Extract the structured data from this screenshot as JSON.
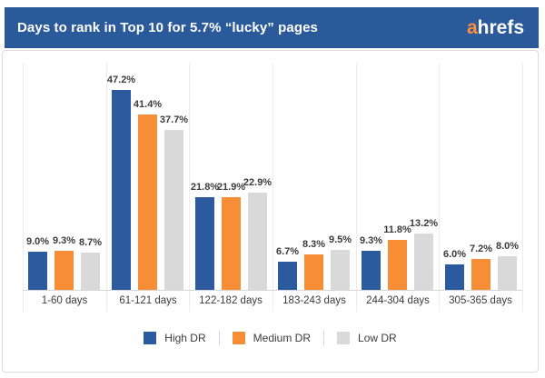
{
  "header": {
    "title": "Days to rank in Top 10 for 5.7% “lucky” pages",
    "logo_prefix": "a",
    "logo_suffix": "hrefs"
  },
  "colors": {
    "header_bg": "#2b5a9b",
    "logo_accent": "#fd8f3d",
    "high_dr": "#2b5a9e",
    "medium_dr": "#f78e36",
    "low_dr": "#d9d9d9",
    "label_text": "#3b3b3b"
  },
  "chart_data": {
    "type": "bar",
    "title": "Days to rank in Top 10 for 5.7% “lucky” pages",
    "categories": [
      "1-60 days",
      "61-121 days",
      "122-182 days",
      "183-243 days",
      "244-304 days",
      "305-365 days"
    ],
    "series": [
      {
        "name": "High DR",
        "color_key": "high_dr",
        "values": [
          9.0,
          47.2,
          21.8,
          6.7,
          9.3,
          6.0
        ]
      },
      {
        "name": "Medium DR",
        "color_key": "medium_dr",
        "values": [
          9.3,
          41.4,
          21.9,
          8.3,
          11.8,
          7.2
        ]
      },
      {
        "name": "Low DR",
        "color_key": "low_dr",
        "values": [
          8.7,
          37.7,
          22.9,
          9.5,
          13.2,
          8.0
        ]
      }
    ],
    "value_label_format": "{value}%",
    "xlabel": "",
    "ylabel": "",
    "ylim": [
      0,
      50
    ],
    "grid": "vertical-between-groups",
    "legend_position": "bottom"
  }
}
